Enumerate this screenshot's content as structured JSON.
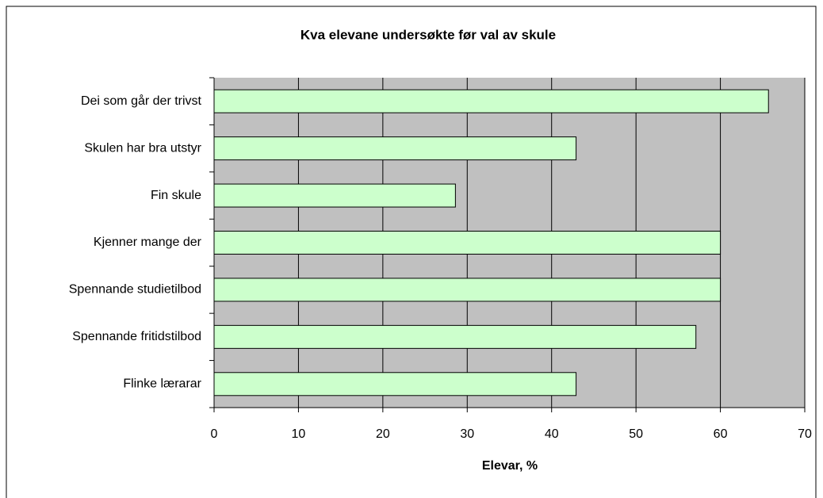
{
  "chart_data": {
    "type": "barh",
    "title": "Kva elevane undersøkte før val av skule",
    "xlabel": "Elevar, %",
    "categories": [
      "Dei som går der trivst",
      "Skulen har bra utstyr",
      "Fin skule",
      "Kjenner mange der",
      "Spennande studietilbod",
      "Spennande fritidstilbod",
      "Flinke lærarar"
    ],
    "values": [
      65.7,
      42.9,
      28.6,
      60,
      60,
      57.1,
      42.9
    ],
    "color": "#ccffcc",
    "xlim": [
      0,
      70
    ],
    "xticks": [
      0,
      10,
      20,
      30,
      40,
      50,
      60,
      70
    ],
    "grid": true
  }
}
